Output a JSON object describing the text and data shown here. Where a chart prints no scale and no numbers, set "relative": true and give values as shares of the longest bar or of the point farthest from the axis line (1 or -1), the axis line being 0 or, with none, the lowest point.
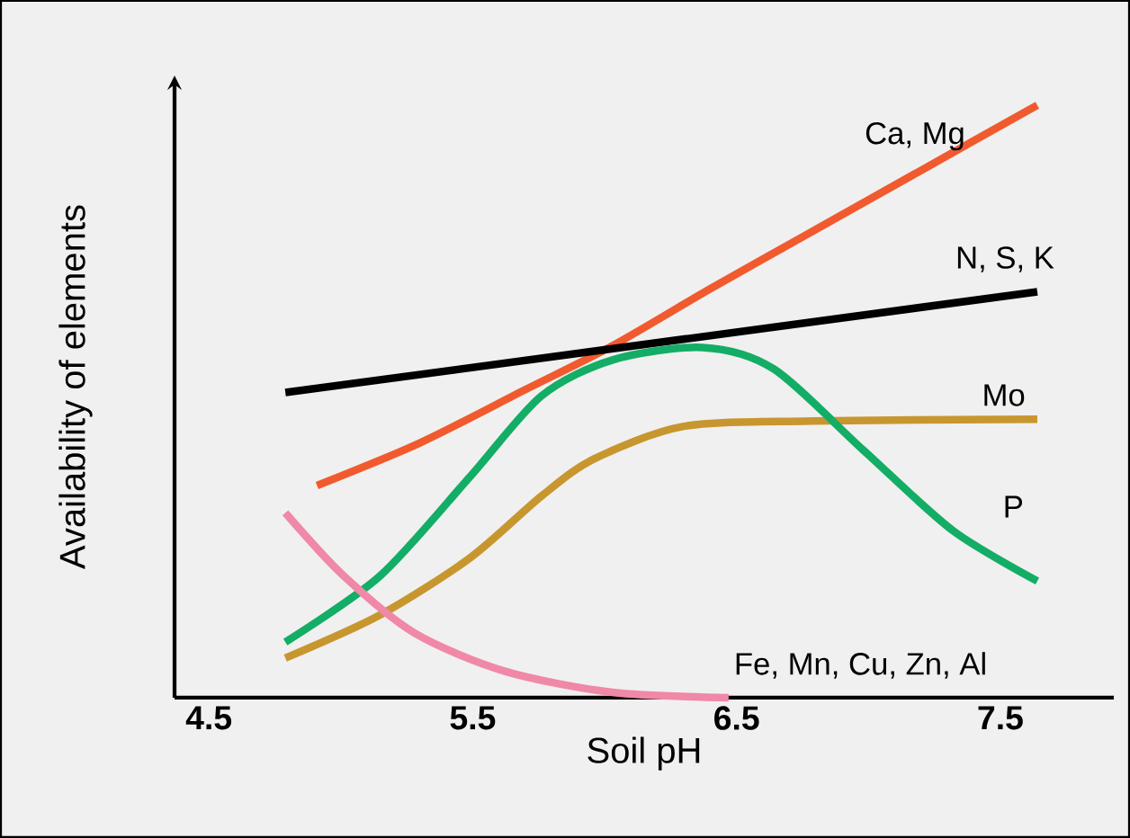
{
  "chart_data": {
    "type": "line",
    "xlabel": "Soil pH",
    "ylabel": "Availability of elements",
    "relative": true,
    "xlim": [
      4.37,
      7.93
    ],
    "xticks": [
      4.5,
      5.5,
      6.5,
      7.5
    ],
    "grid": false,
    "legend": false,
    "marker": "none",
    "line_style": "solid",
    "series": [
      {
        "name": "Ca, Mg",
        "color": "#f15a2e",
        "x": [
          4.91,
          5.3,
          5.7,
          6.03,
          6.4,
          6.8,
          7.2,
          7.64
        ],
        "values": [
          0.358,
          0.43,
          0.52,
          0.594,
          0.69,
          0.79,
          0.89,
          1.0
        ]
      },
      {
        "name": "N, S, K",
        "color": "#000000",
        "x": [
          4.79,
          7.64
        ],
        "values": [
          0.515,
          0.685
        ]
      },
      {
        "name": "Mo",
        "color": "#c8962f",
        "x": [
          4.79,
          5.15,
          5.49,
          5.76,
          5.96,
          6.3,
          6.78,
          7.64
        ],
        "values": [
          0.067,
          0.14,
          0.236,
          0.34,
          0.403,
          0.458,
          0.467,
          0.47
        ]
      },
      {
        "name": "P",
        "color": "#13ad66",
        "x": [
          4.79,
          5.15,
          5.49,
          5.76,
          6.03,
          6.37,
          6.64,
          6.98,
          7.32,
          7.64
        ],
        "values": [
          0.094,
          0.206,
          0.373,
          0.509,
          0.57,
          0.591,
          0.555,
          0.418,
          0.282,
          0.197
        ]
      },
      {
        "name": "Fe, Mn, Cu, Zn, Al",
        "color": "#f088a8",
        "x": [
          4.79,
          5.01,
          5.28,
          5.62,
          6.03,
          6.47
        ],
        "values": [
          0.312,
          0.206,
          0.109,
          0.045,
          0.009,
          0.0
        ]
      }
    ]
  }
}
